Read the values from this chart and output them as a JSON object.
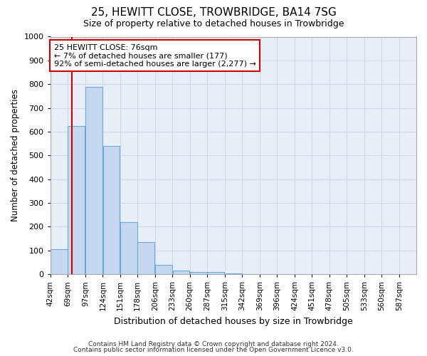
{
  "title1": "25, HEWITT CLOSE, TROWBRIDGE, BA14 7SG",
  "title2": "Size of property relative to detached houses in Trowbridge",
  "xlabel": "Distribution of detached houses by size in Trowbridge",
  "ylabel": "Number of detached properties",
  "bin_labels": [
    "42sqm",
    "69sqm",
    "97sqm",
    "124sqm",
    "151sqm",
    "178sqm",
    "206sqm",
    "233sqm",
    "260sqm",
    "287sqm",
    "315sqm",
    "342sqm",
    "369sqm",
    "396sqm",
    "424sqm",
    "451sqm",
    "478sqm",
    "505sqm",
    "533sqm",
    "560sqm",
    "587sqm"
  ],
  "bin_edges": [
    42,
    69,
    97,
    124,
    151,
    178,
    206,
    233,
    260,
    287,
    315,
    342,
    369,
    396,
    424,
    451,
    478,
    505,
    533,
    560,
    587
  ],
  "bar_heights": [
    105,
    625,
    790,
    540,
    220,
    135,
    40,
    15,
    10,
    10,
    2,
    1,
    0,
    0,
    0,
    0,
    0,
    0,
    0,
    0
  ],
  "bar_color": "#c5d8f0",
  "bar_edge_color": "#6aaad4",
  "property_line_x": 76,
  "annotation_line1": "25 HEWITT CLOSE: 76sqm",
  "annotation_line2": "← 7% of detached houses are smaller (177)",
  "annotation_line3": "92% of semi-detached houses are larger (2,277) →",
  "annotation_box_color": "#ffffff",
  "annotation_box_edgecolor": "#cc0000",
  "line_color": "#cc0000",
  "ylim": [
    0,
    1000
  ],
  "yticks": [
    0,
    100,
    200,
    300,
    400,
    500,
    600,
    700,
    800,
    900,
    1000
  ],
  "grid_color": "#cdd8ea",
  "bg_color": "#e8eef8",
  "footer1": "Contains HM Land Registry data © Crown copyright and database right 2024.",
  "footer2": "Contains public sector information licensed under the Open Government Licence v3.0."
}
